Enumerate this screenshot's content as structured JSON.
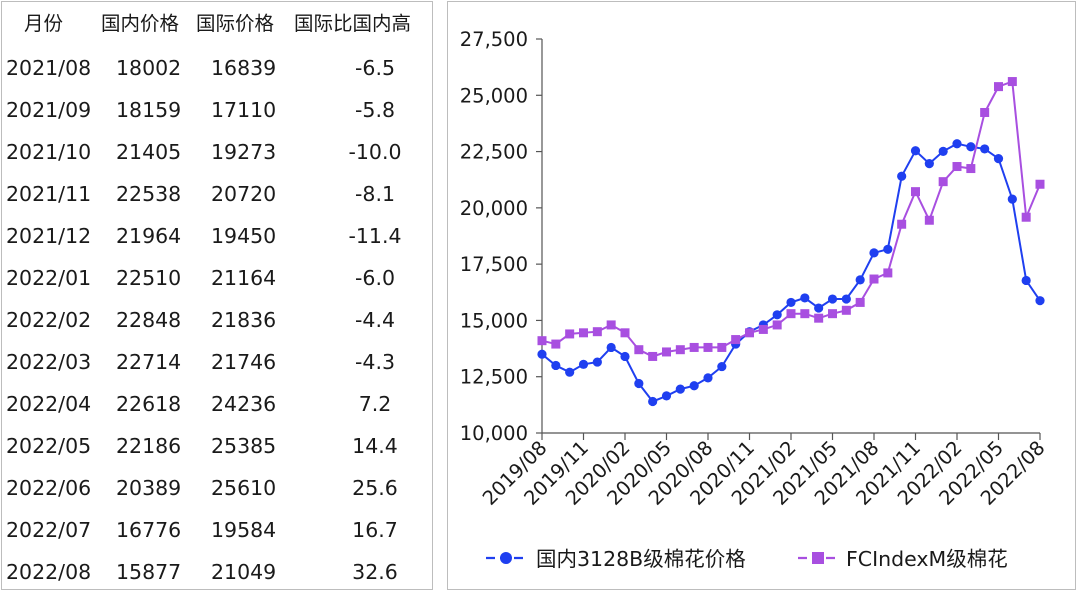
{
  "table": {
    "headers": [
      "月份",
      "国内价格",
      "国际价格",
      "国际比国内高"
    ],
    "rows": [
      [
        "2021/08",
        "18002",
        "16839",
        "-6.5"
      ],
      [
        "2021/09",
        "18159",
        "17110",
        "-5.8"
      ],
      [
        "2021/10",
        "21405",
        "19273",
        "-10.0"
      ],
      [
        "2021/11",
        "22538",
        "20720",
        "-8.1"
      ],
      [
        "2021/12",
        "21964",
        "19450",
        "-11.4"
      ],
      [
        "2022/01",
        "22510",
        "21164",
        "-6.0"
      ],
      [
        "2022/02",
        "22848",
        "21836",
        "-4.4"
      ],
      [
        "2022/03",
        "22714",
        "21746",
        "-4.3"
      ],
      [
        "2022/04",
        "22618",
        "24236",
        "7.2"
      ],
      [
        "2022/05",
        "22186",
        "25385",
        "14.4"
      ],
      [
        "2022/06",
        "20389",
        "25610",
        "25.6"
      ],
      [
        "2022/07",
        "16776",
        "19584",
        "16.7"
      ],
      [
        "2022/08",
        "15877",
        "21049",
        "32.6"
      ]
    ]
  },
  "chart_data": {
    "type": "line",
    "x": [
      "2019/08",
      "2019/09",
      "2019/10",
      "2019/11",
      "2019/12",
      "2020/01",
      "2020/02",
      "2020/03",
      "2020/04",
      "2020/05",
      "2020/06",
      "2020/07",
      "2020/08",
      "2020/09",
      "2020/10",
      "2020/11",
      "2020/12",
      "2021/01",
      "2021/02",
      "2021/03",
      "2021/04",
      "2021/05",
      "2021/06",
      "2021/07",
      "2021/08",
      "2021/09",
      "2021/10",
      "2021/11",
      "2021/12",
      "2022/01",
      "2022/02",
      "2022/03",
      "2022/04",
      "2022/05",
      "2022/06",
      "2022/07",
      "2022/08"
    ],
    "x_tick_labels": [
      "2019/08",
      "2019/11",
      "2020/02",
      "2020/05",
      "2020/08",
      "2020/11",
      "2021/02",
      "2021/05",
      "2021/08",
      "2021/11",
      "2022/02",
      "2022/05",
      "2022/08"
    ],
    "y_tick_labels": [
      "10,000",
      "12,500",
      "15,000",
      "17,500",
      "20,000",
      "22,500",
      "25,000",
      "27,500"
    ],
    "ylim": [
      10000,
      27500
    ],
    "grid": false,
    "legend_position": "bottom",
    "series": [
      {
        "name": "国内3128B级棉花价格",
        "color": "#1f3ff0",
        "marker": "circle",
        "values": [
          13500,
          13000,
          12700,
          13050,
          13150,
          13800,
          13400,
          12200,
          11400,
          11650,
          11950,
          12100,
          12450,
          12950,
          13950,
          14500,
          14800,
          15250,
          15800,
          16000,
          15550,
          15950,
          15950,
          16800,
          18002,
          18159,
          21405,
          22538,
          21964,
          22510,
          22848,
          22714,
          22618,
          22186,
          20389,
          16776,
          15877
        ]
      },
      {
        "name": "FCIndexM级棉花",
        "color": "#a84fe0",
        "marker": "square",
        "values": [
          14100,
          13950,
          14400,
          14450,
          14500,
          14800,
          14450,
          13700,
          13400,
          13600,
          13700,
          13800,
          13800,
          13800,
          14150,
          14450,
          14600,
          14800,
          15300,
          15300,
          15100,
          15300,
          15450,
          15800,
          16839,
          17110,
          19273,
          20720,
          19450,
          21164,
          21836,
          21746,
          24236,
          25385,
          25610,
          19584,
          21049
        ]
      }
    ]
  }
}
